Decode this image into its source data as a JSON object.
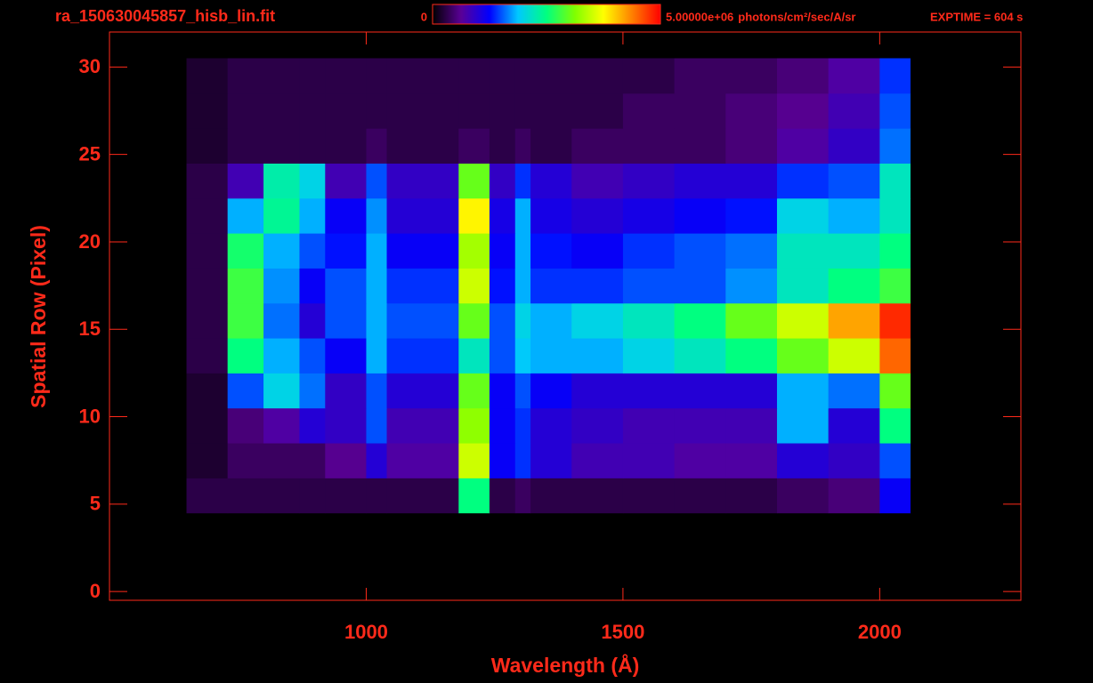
{
  "chart_data": {
    "type": "heatmap",
    "title": "ra_150630045857_hisb_lin.fit",
    "exposure": "EXPTIME = 604 s",
    "xlabel": "Wavelength (Å)",
    "ylabel": "Spatial Row (Pixel)",
    "xlim": [
      500,
      2275
    ],
    "ylim": [
      -0.5,
      32
    ],
    "xticks": [
      1000,
      1500,
      2000
    ],
    "yticks": [
      0,
      5,
      10,
      15,
      20,
      25,
      30
    ],
    "zlim": [
      0,
      5000000
    ],
    "zticks": [
      0,
      {
        "value": 5000000,
        "label": "5.00000e+06"
      }
    ],
    "zlabel": "photons/cm²/sec/A/sr",
    "axis_color": "#ff2a1a",
    "colormap": [
      "#000000",
      "#5a0096",
      "#0000ff",
      "#00c8ff",
      "#00ff80",
      "#80ff00",
      "#ffff00",
      "#ff8000",
      "#ff0000"
    ],
    "xbins": [
      650,
      730,
      800,
      870,
      920,
      1000,
      1040,
      1180,
      1240,
      1290,
      1320,
      1400,
      1500,
      1600,
      1700,
      1800,
      1900,
      2000,
      2060,
      2100
    ],
    "ybins": [
      4.5,
      6.5,
      8.5,
      10.5,
      12.5,
      14.5,
      16.5,
      18.5,
      20.5,
      22.5,
      24.5,
      26.5,
      28.5,
      30.5
    ],
    "values": [
      [
        300000,
        300000,
        300000,
        300000,
        300000,
        300000,
        300000,
        2500000,
        300000,
        400000,
        300000,
        300000,
        300000,
        300000,
        300000,
        400000,
        500000,
        1200000,
        0
      ],
      [
        200000,
        400000,
        400000,
        400000,
        600000,
        1000000,
        700000,
        3500000,
        1200000,
        1400000,
        1000000,
        800000,
        800000,
        700000,
        700000,
        1000000,
        900000,
        1500000,
        0
      ],
      [
        200000,
        500000,
        700000,
        1000000,
        900000,
        1500000,
        800000,
        3200000,
        1200000,
        1400000,
        1000000,
        900000,
        800000,
        800000,
        800000,
        1800000,
        1000000,
        2500000,
        0
      ],
      [
        200000,
        1500000,
        2000000,
        1600000,
        900000,
        1500000,
        1000000,
        3000000,
        1200000,
        1500000,
        1200000,
        1000000,
        1000000,
        1000000,
        1000000,
        1800000,
        1600000,
        3000000,
        0
      ],
      [
        300000,
        2500000,
        1800000,
        1500000,
        1200000,
        1800000,
        1400000,
        2200000,
        1500000,
        1900000,
        1800000,
        1800000,
        2000000,
        2200000,
        2500000,
        3000000,
        3500000,
        4500000,
        0
      ],
      [
        300000,
        2800000,
        1600000,
        1000000,
        1500000,
        1800000,
        1500000,
        3000000,
        1500000,
        2000000,
        1800000,
        2000000,
        2200000,
        2500000,
        3000000,
        3500000,
        4200000,
        4800000,
        0
      ],
      [
        300000,
        2800000,
        1700000,
        1200000,
        1500000,
        1800000,
        1400000,
        3500000,
        1300000,
        1800000,
        1400000,
        1400000,
        1500000,
        1500000,
        1700000,
        2200000,
        2500000,
        2800000,
        0
      ],
      [
        300000,
        2600000,
        1800000,
        1500000,
        1300000,
        1800000,
        1200000,
        3300000,
        1200000,
        1800000,
        1300000,
        1200000,
        1400000,
        1500000,
        1600000,
        2200000,
        2200000,
        2500000,
        0
      ],
      [
        300000,
        1800000,
        2400000,
        1800000,
        1200000,
        1700000,
        1000000,
        3800000,
        1100000,
        1800000,
        1100000,
        1000000,
        1100000,
        1200000,
        1300000,
        2000000,
        1800000,
        2200000,
        0
      ],
      [
        300000,
        800000,
        2300000,
        2000000,
        800000,
        1500000,
        900000,
        3000000,
        900000,
        1400000,
        1000000,
        800000,
        900000,
        1000000,
        1000000,
        1400000,
        1500000,
        2200000,
        0
      ],
      [
        200000,
        300000,
        300000,
        300000,
        300000,
        400000,
        300000,
        400000,
        300000,
        400000,
        300000,
        400000,
        400000,
        400000,
        500000,
        700000,
        900000,
        1600000,
        0
      ],
      [
        200000,
        300000,
        300000,
        300000,
        300000,
        300000,
        300000,
        300000,
        300000,
        300000,
        300000,
        300000,
        400000,
        400000,
        500000,
        600000,
        800000,
        1500000,
        0
      ],
      [
        200000,
        300000,
        300000,
        300000,
        300000,
        300000,
        300000,
        300000,
        300000,
        300000,
        300000,
        300000,
        300000,
        400000,
        400000,
        500000,
        700000,
        1400000,
        0
      ]
    ]
  }
}
